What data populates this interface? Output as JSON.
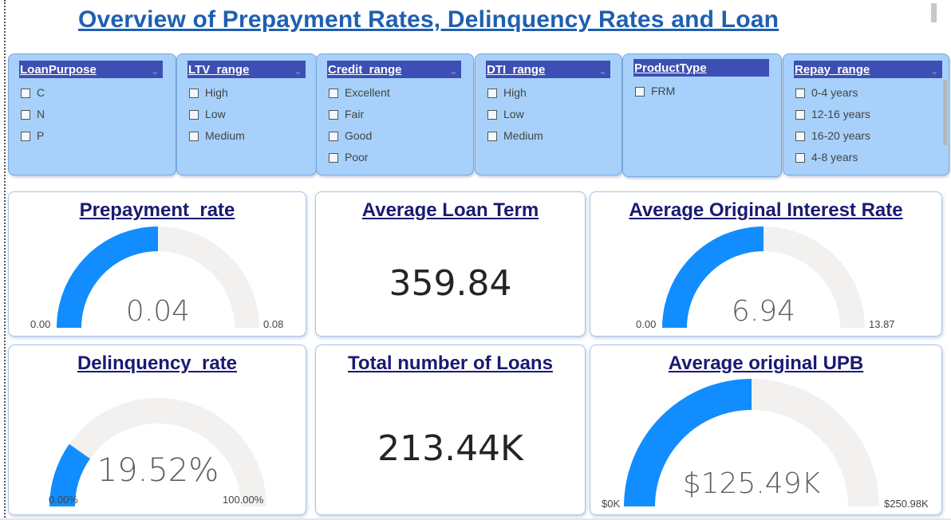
{
  "title": "Overview of Prepayment Rates, Delinquency Rates and Loan ",
  "colors": {
    "accent": "#118dff",
    "track": "#f2f1f0",
    "slicer_bg": "#a7d1fb",
    "slicer_header": "#3d4fb4",
    "title": "#1f5fb0",
    "card_title": "#1a1a72"
  },
  "slicers": [
    {
      "header": "LoanPurpose",
      "items": [
        "C",
        "N",
        "P"
      ]
    },
    {
      "header": "LTV_range",
      "items": [
        "High",
        "Low",
        "Medium"
      ]
    },
    {
      "header": "Credit_range",
      "items": [
        "Excellent",
        "Fair",
        "Good",
        "Poor"
      ]
    },
    {
      "header": "DTI_range",
      "items": [
        "High",
        "Low",
        "Medium"
      ]
    },
    {
      "header": "ProductType",
      "items": [
        "FRM"
      ]
    },
    {
      "header": "Repay_range",
      "items": [
        "0-4 years",
        "12-16 years",
        "16-20 years",
        "4-8 years"
      ]
    }
  ],
  "cards": {
    "prepayment": {
      "title": "Prepayment_rate",
      "value": "0.04",
      "min": "0.00",
      "max": "0.08",
      "fraction": 0.5
    },
    "loan_term": {
      "title": "Average Loan Term",
      "value": "359.84"
    },
    "interest": {
      "title": "Average Original Interest Rate",
      "value": "6.94",
      "min": "0.00",
      "max": "13.87",
      "fraction": 0.5
    },
    "delinquency": {
      "title": "Delinquency_rate",
      "value": "19.52%",
      "min": "0.00%",
      "max": "100.00%",
      "fraction": 0.1952
    },
    "total_loans": {
      "title": "Total number of Loans",
      "value": "213.44K"
    },
    "upb": {
      "title": "Average original UPB",
      "value": "$125.49K",
      "min": "$0K",
      "max": "$250.98K",
      "fraction": 0.5
    }
  }
}
